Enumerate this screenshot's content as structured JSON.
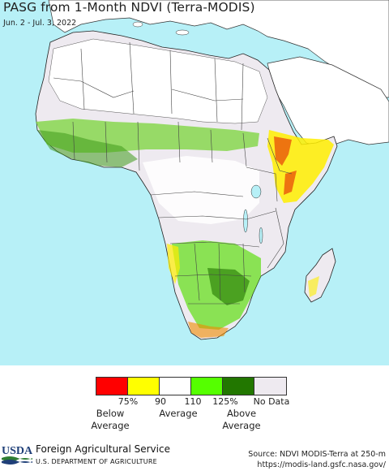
{
  "title": "PASG from 1-Month NDVI (Terra-MODIS)",
  "date_range": "Jun. 2 - Jul. 3, 2022",
  "map": {
    "region": "Africa",
    "ocean_color": "#b7f0f7",
    "land_nodata_color": "#f0eef0",
    "mask_color": "#ffffff",
    "border_color": "#333333"
  },
  "legend": {
    "colors": [
      "#ff0000",
      "#ffff00",
      "#ffffff",
      "#55ff00",
      "#227700",
      "#eeeaf0"
    ],
    "ticks": [
      "75%",
      "90",
      "110",
      "125%",
      "No Data"
    ],
    "categories": [
      "Below\nAverage",
      "Average",
      "Above\nAverage"
    ]
  },
  "footer": {
    "logo_text": "USDA",
    "agency": "Foreign Agricultural Service",
    "department": "U.S. DEPARTMENT OF AGRICULTURE",
    "source": "Source: NDVI MODIS-Terra at 250-m",
    "url": "https://modis-land.gsfc.nasa.gov/"
  }
}
